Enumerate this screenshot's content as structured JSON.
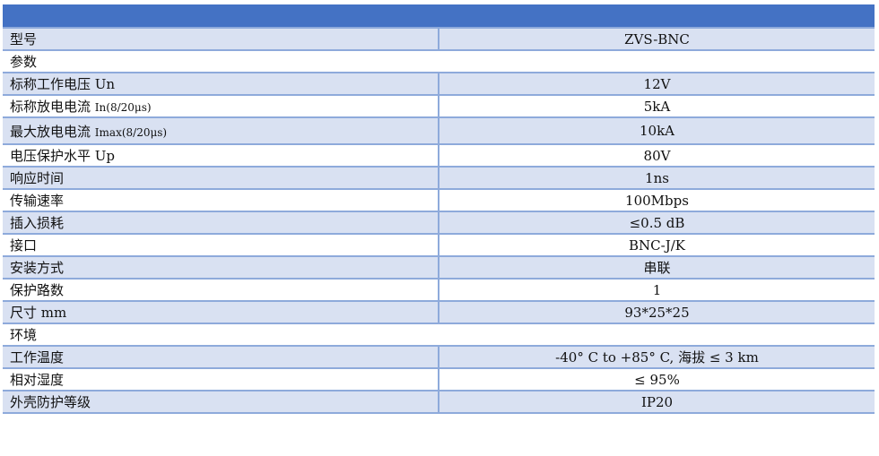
{
  "colors": {
    "header": "#4472c4",
    "band": "#d9e1f2",
    "border": "#8eaadb"
  },
  "rows": [
    {
      "label": "型号",
      "value": "ZVS-BNC"
    },
    {
      "section": "参数"
    },
    {
      "label": "标称工作电压 Un",
      "value": "12V"
    },
    {
      "label": "标称放电电流",
      "sub": "In(8/20μs)",
      "value": "5kA"
    },
    {
      "label": "最大放电电流",
      "sub": "Imax(8/20μs)",
      "value": "10kA"
    },
    {
      "label": "电压保护水平 Up",
      "value": "80V"
    },
    {
      "label": "响应时间",
      "value": "1ns"
    },
    {
      "label": "传输速率",
      "value": "100Mbps"
    },
    {
      "label": "插入损耗",
      "value": "≤0.5 dB"
    },
    {
      "label": "接口",
      "value": "BNC-J/K"
    },
    {
      "label": "安装方式",
      "value": "串联"
    },
    {
      "label": "保护路数",
      "value": "1"
    },
    {
      "label": "尺寸 mm",
      "value": "93*25*25"
    },
    {
      "section": "环境"
    },
    {
      "label": "工作温度",
      "value": "-40° C to +85° C, 海拔 ≤ 3 km"
    },
    {
      "label": "相对湿度",
      "value": "≤ 95%"
    },
    {
      "label": "外壳防护等级",
      "value": "IP20"
    }
  ]
}
